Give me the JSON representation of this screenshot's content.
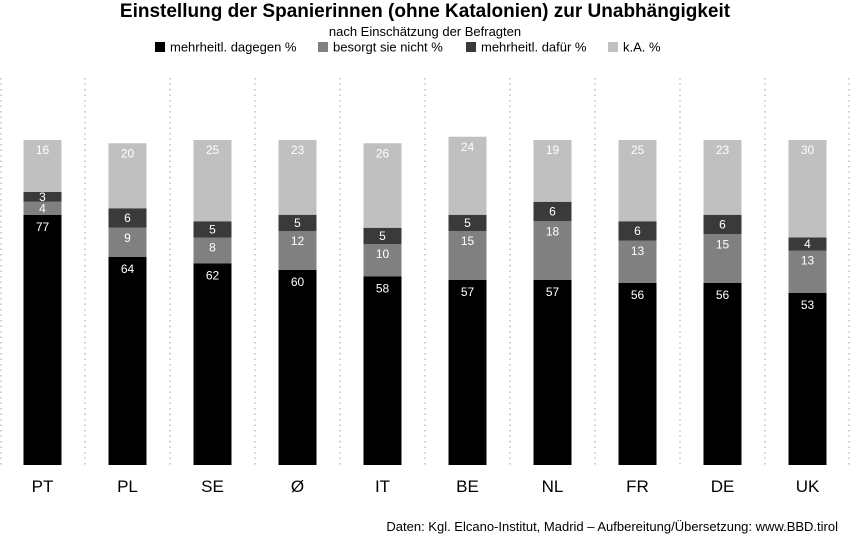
{
  "chart_data": {
    "type": "bar",
    "stacked": true,
    "title": "Einstellung der Spanierinnen (ohne Katalonien) zur Unabhängigkeit",
    "subtitle": "nach Einschätzung der Befragten",
    "categories": [
      "PT",
      "PL",
      "SE",
      "Ø",
      "IT",
      "BE",
      "NL",
      "FR",
      "DE",
      "UK"
    ],
    "series": [
      {
        "name": "mehrheitl. dagegen %",
        "color": "#000000",
        "label_color": "#ffffff",
        "values": [
          77,
          64,
          62,
          60,
          58,
          57,
          57,
          56,
          56,
          53
        ]
      },
      {
        "name": "besorgt sie nicht %",
        "color": "#808080",
        "label_color": "#ffffff",
        "values": [
          4,
          9,
          8,
          12,
          10,
          15,
          18,
          13,
          15,
          13
        ]
      },
      {
        "name": "mehrheitl. dafür %",
        "color": "#3a3a3a",
        "label_color": "#ffffff",
        "values": [
          3,
          6,
          5,
          5,
          5,
          5,
          6,
          6,
          6,
          4
        ]
      },
      {
        "name": "k.A. %",
        "color": "#c0c0c0",
        "label_color": "#ffffff",
        "values": [
          16,
          20,
          25,
          23,
          26,
          24,
          19,
          25,
          23,
          30
        ]
      }
    ],
    "legend_position": "top-center",
    "grid": "vertical dotted separators",
    "source": "Daten: Kgl. Elcano-Institut, Madrid – Aufbereitung/Übersetzung: www.BBD.tirol"
  }
}
